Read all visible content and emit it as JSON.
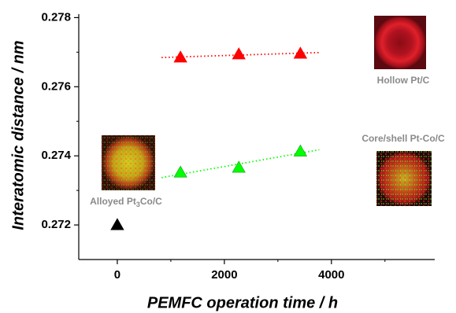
{
  "chart_data": {
    "type": "scatter",
    "y_label": "Interatomic distance / nm",
    "x_label": "PEMFC operation time / h",
    "xlim": [
      -720,
      5930
    ],
    "ylim": [
      0.271,
      0.2781
    ],
    "xticks": [
      0,
      2000,
      4000
    ],
    "xminorticks": [
      1000,
      3000,
      5000
    ],
    "yticks": [
      0.272,
      0.274,
      0.276,
      0.278
    ],
    "yminorticks": [
      0.273,
      0.275,
      0.277
    ],
    "series": [
      {
        "color": "#ff0000",
        "fit": true,
        "x": [
          1180,
          2270,
          3420
        ],
        "values": [
          0.27685,
          0.27694,
          0.27696
        ]
      },
      {
        "color": "#00ff00",
        "fit": true,
        "x": [
          1180,
          2270,
          3420
        ],
        "values": [
          0.27352,
          0.27366,
          0.27413
        ]
      },
      {
        "color": "#000000",
        "fit": false,
        "x": [
          0
        ],
        "values": [
          0.272
        ]
      }
    ],
    "annotations": [
      {
        "parts": [
          "Hollow Pt/C"
        ]
      },
      {
        "parts": [
          "Core/shell Pt-Co/C"
        ]
      },
      {
        "parts": [
          "Alloyed Pt",
          "3",
          "Co/C"
        ]
      }
    ]
  }
}
